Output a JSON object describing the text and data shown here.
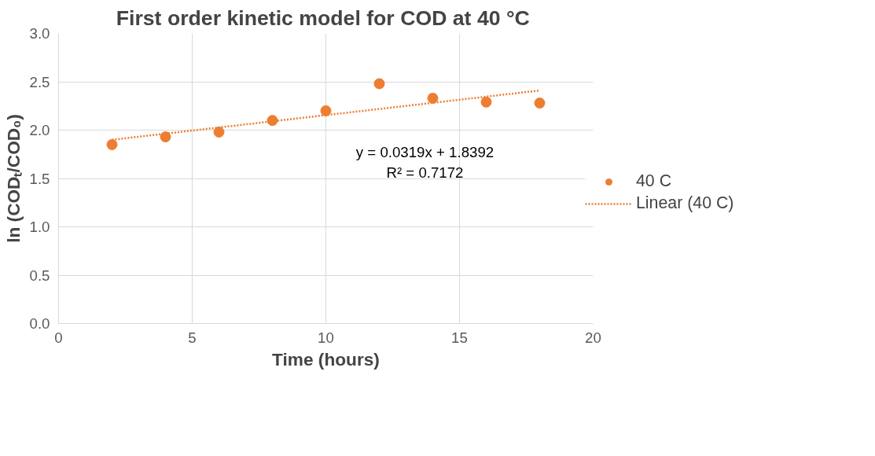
{
  "chart_data": {
    "type": "scatter",
    "title": "First order kinetic model for COD  at 40 °C",
    "xlabel": "Time (hours)",
    "ylabel": "ln (CODₜ/COD₀)",
    "series": [
      {
        "name": "40 C",
        "color": "#ed7d31",
        "marker": "circle",
        "x": [
          2,
          4,
          6,
          8,
          10,
          12,
          14,
          16,
          18
        ],
        "values": [
          1.85,
          1.93,
          1.98,
          2.1,
          2.2,
          2.48,
          2.33,
          2.29,
          2.28
        ]
      },
      {
        "name": "Linear (40 C)",
        "type": "line",
        "color": "#ed7d31",
        "line_style": "dotted",
        "x": [
          2,
          18
        ],
        "values": [
          1.9,
          2.41
        ]
      }
    ],
    "xlim": [
      0,
      20
    ],
    "xticks": [
      0,
      5,
      10,
      15,
      20
    ],
    "ylim": [
      0,
      3
    ],
    "yticks": [
      {
        "value": 0,
        "label": "0.0"
      },
      {
        "value": 0.5,
        "label": "0.5"
      },
      {
        "value": 1,
        "label": "1.0"
      },
      {
        "value": 1.5,
        "label": "1.5"
      },
      {
        "value": 2,
        "label": "2.0"
      },
      {
        "value": 2.5,
        "label": "2.5"
      },
      {
        "value": 3,
        "label": "3.0"
      }
    ],
    "grid": true,
    "legend": "right",
    "annotations": [
      "y = 0.0319x + 1.8392\nR² = 0.7172"
    ]
  }
}
